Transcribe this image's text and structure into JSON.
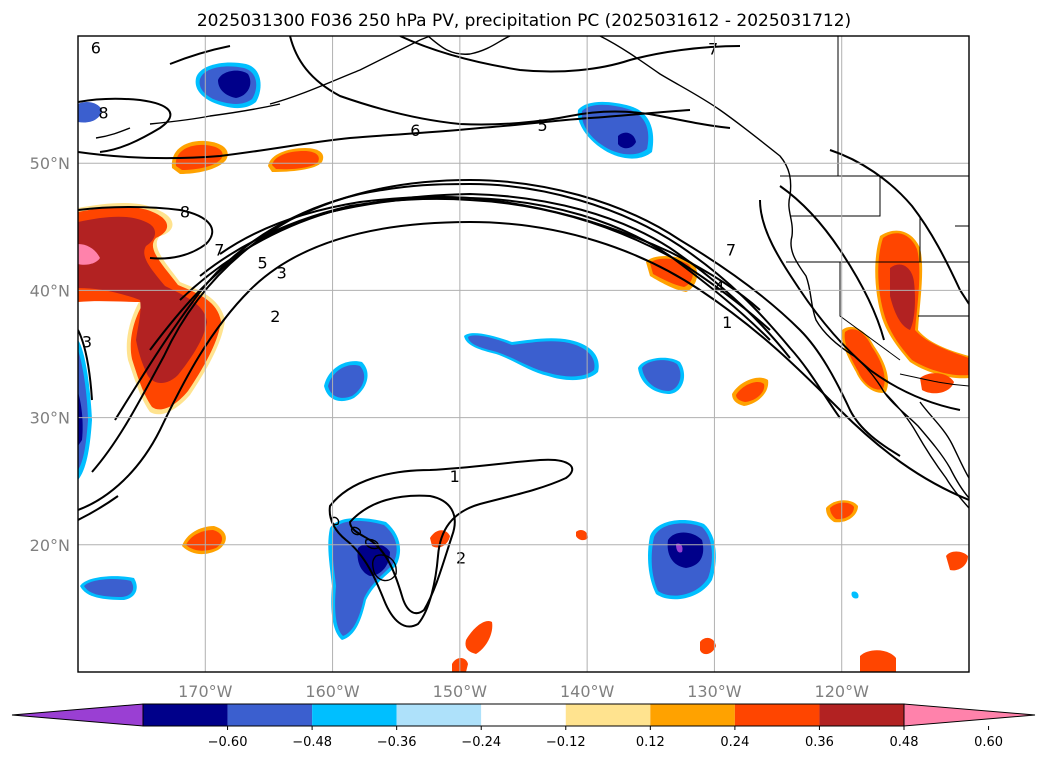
{
  "figure": {
    "title": "2025031300 F036 250 hPa PV, precipitation PC (2025031612 - 2025031712)"
  },
  "map": {
    "lon_range": [
      -180,
      -110
    ],
    "lat_range": [
      10,
      60
    ],
    "lon_ticks": [
      {
        "value": -170,
        "label": "170°W"
      },
      {
        "value": -160,
        "label": "160°W"
      },
      {
        "value": -150,
        "label": "150°W"
      },
      {
        "value": -140,
        "label": "140°W"
      },
      {
        "value": -130,
        "label": "130°W"
      },
      {
        "value": -120,
        "label": "120°W"
      }
    ],
    "lat_ticks": [
      {
        "value": 50,
        "label": "50°N"
      },
      {
        "value": 40,
        "label": "40°N"
      },
      {
        "value": 30,
        "label": "30°N"
      },
      {
        "value": 20,
        "label": "20°N"
      }
    ],
    "gridlines": true,
    "contour_labels": [
      {
        "text": "6",
        "lon": -178.6,
        "lat": 59.1
      },
      {
        "text": "7",
        "lon": -130.1,
        "lat": 59.0
      },
      {
        "text": "6",
        "lon": -153.5,
        "lat": 52.6
      },
      {
        "text": "5",
        "lon": -143.5,
        "lat": 53.0
      },
      {
        "text": "8",
        "lon": -178.0,
        "lat": 54.0
      },
      {
        "text": "8",
        "lon": -171.6,
        "lat": 46.2
      },
      {
        "text": "7",
        "lon": -168.9,
        "lat": 43.2
      },
      {
        "text": "5",
        "lon": -165.5,
        "lat": 42.2
      },
      {
        "text": "3",
        "lon": -164.0,
        "lat": 41.4
      },
      {
        "text": "2",
        "lon": -164.5,
        "lat": 38.0
      },
      {
        "text": "3",
        "lon": -179.3,
        "lat": 36.0
      },
      {
        "text": "7",
        "lon": -128.7,
        "lat": 43.2
      },
      {
        "text": "4",
        "lon": -129.6,
        "lat": 40.3
      },
      {
        "text": "1",
        "lon": -129.0,
        "lat": 37.5
      },
      {
        "text": "1",
        "lon": -150.4,
        "lat": 25.4
      },
      {
        "text": "2",
        "lon": -149.9,
        "lat": 19.0
      }
    ],
    "precip_levels": {
      "colors": {
        "lt_-0.60": "#9a3fd3",
        "-0.60_-0.48": "#00008a",
        "-0.48_-0.36": "#3b5fcf",
        "-0.36_-0.24": "#00bfff",
        "-0.24_-0.12": "#aee1fa",
        "0.12_0.24": "#ffe38f",
        "0.24_0.36": "#ffa200",
        "0.36_0.48": "#ff4500",
        "0.48_0.60": "#b22222",
        "gt_0.60": "#ff82ab"
      }
    }
  },
  "colorbar": {
    "ticks": [
      "−0.60",
      "−0.48",
      "−0.36",
      "−0.24",
      "−0.12",
      "0.12",
      "0.24",
      "0.36",
      "0.48",
      "0.60"
    ],
    "colors": [
      "#9a3fd3",
      "#00008a",
      "#3b5fcf",
      "#00bfff",
      "#aee1fa",
      "#ffffff",
      "#ffe38f",
      "#ffa200",
      "#ff4500",
      "#b22222",
      "#ff82ab"
    ]
  }
}
